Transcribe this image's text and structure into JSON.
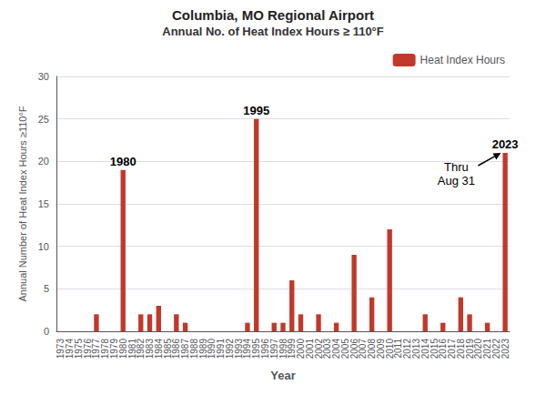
{
  "chart_data": {
    "type": "bar",
    "title": "Columbia, MO Regional Airport",
    "subtitle": "Annual No. of Heat Index Hours ≥ 110°F",
    "xlabel": "Year",
    "ylabel": "Annual Number of Heat Index Hours ≥110°F",
    "categories": [
      1973,
      1974,
      1975,
      1976,
      1977,
      1978,
      1979,
      1980,
      1981,
      1982,
      1983,
      1984,
      1985,
      1986,
      1987,
      1988,
      1989,
      1990,
      1991,
      1992,
      1993,
      1994,
      1995,
      1996,
      1997,
      1998,
      1999,
      2000,
      2001,
      2002,
      2003,
      2004,
      2005,
      2006,
      2007,
      2008,
      2009,
      2010,
      2011,
      2012,
      2013,
      2014,
      2015,
      2016,
      2017,
      2018,
      2019,
      2020,
      2021,
      2022,
      2023
    ],
    "series": [
      {
        "name": "Heat Index Hours",
        "color": "#c0392b",
        "values": [
          0,
          0,
          0,
          0,
          2,
          0,
          0,
          19,
          0,
          2,
          2,
          3,
          0,
          2,
          1,
          0,
          0,
          0,
          0,
          0,
          0,
          1,
          25,
          0,
          1,
          1,
          6,
          2,
          0,
          2,
          0,
          1,
          0,
          9,
          0,
          4,
          0,
          12,
          0,
          0,
          0,
          2,
          0,
          1,
          0,
          4,
          2,
          0,
          1,
          0,
          21
        ]
      }
    ],
    "ylim": [
      0,
      30
    ],
    "yticks": [
      0,
      5,
      10,
      15,
      20,
      25,
      30
    ],
    "grid": true,
    "legend": "upper right",
    "annotations": [
      {
        "text": "1980",
        "x": 1980
      },
      {
        "text": "1995",
        "x": 1995
      },
      {
        "text": "2023",
        "x": 2023
      },
      {
        "text": "Thru\nAug 31",
        "x": 2023,
        "arrow": true
      }
    ]
  }
}
